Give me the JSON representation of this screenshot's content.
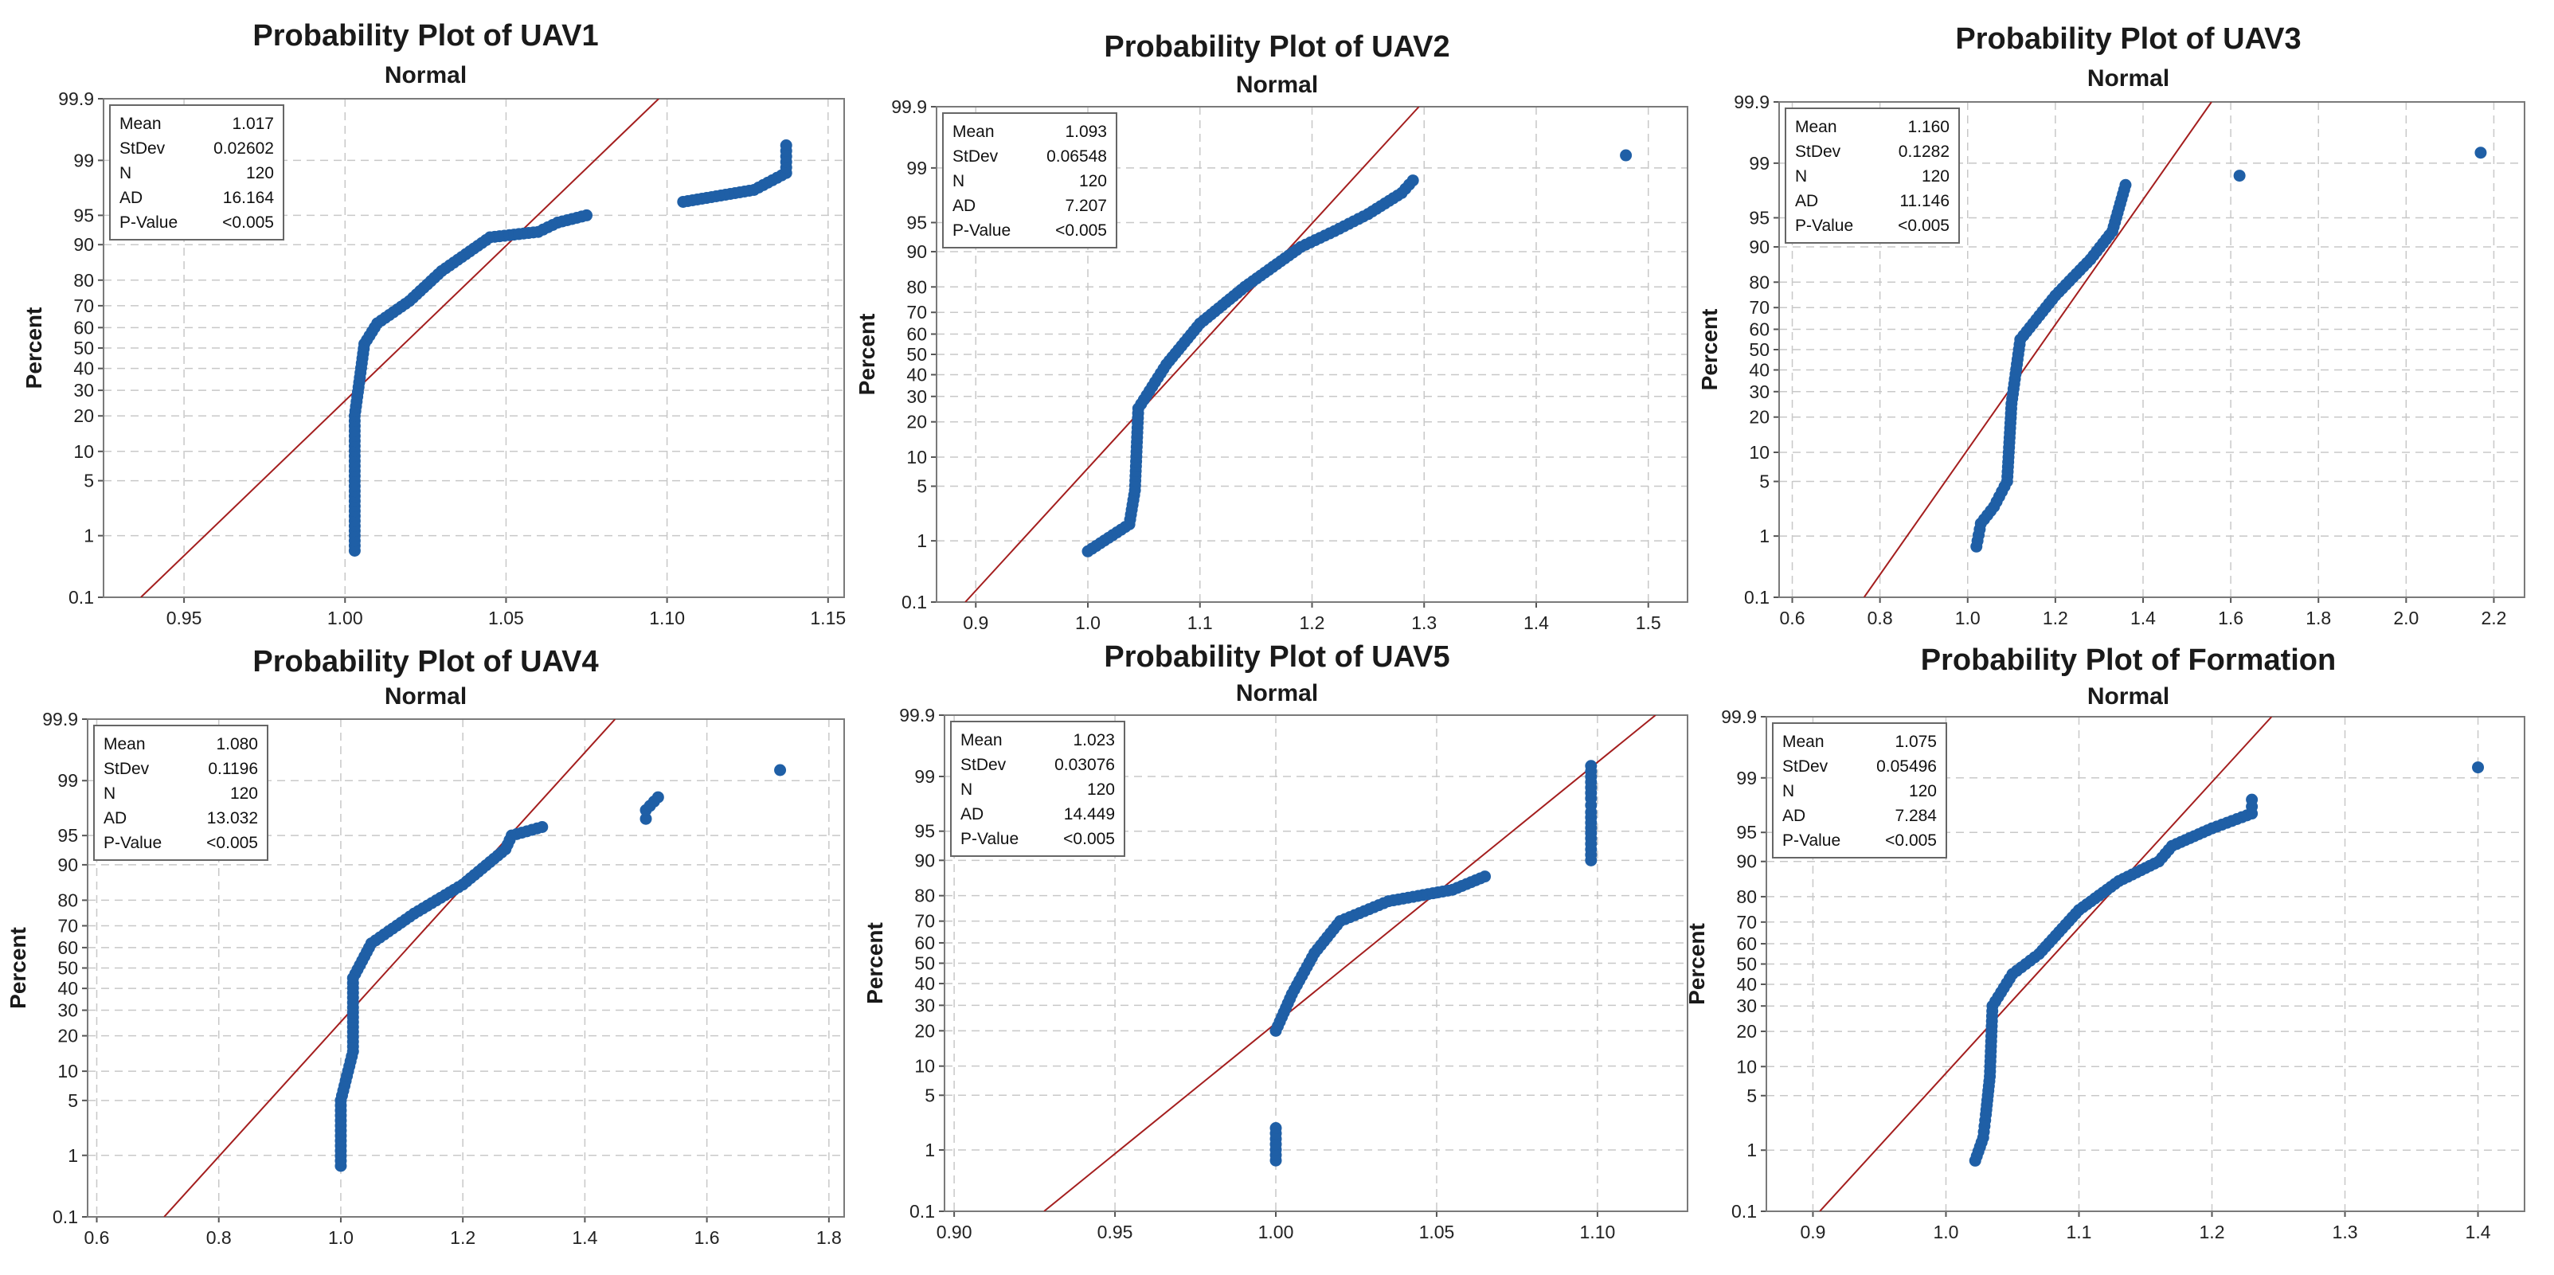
{
  "chart_data": [
    {
      "type": "scatter",
      "title": "Probability Plot of UAV1",
      "subtitle": "Normal",
      "xlabel": "",
      "ylabel": "Percent",
      "xlim": [
        0.925,
        1.155
      ],
      "x_ticks": [
        "0.95",
        "1.00",
        "1.05",
        "1.10",
        "1.15"
      ],
      "y_ticks": [
        "0.1",
        "1",
        "5",
        "10",
        "20",
        "30",
        "40",
        "50",
        "60",
        "70",
        "80",
        "90",
        "95",
        "99",
        "99.9"
      ],
      "fit_line": {
        "mean": 1.017,
        "stdev": 0.02602
      },
      "stats": [
        {
          "label": "Mean",
          "value": "1.017"
        },
        {
          "label": "StDev",
          "value": "0.02602"
        },
        {
          "label": "N",
          "value": "120"
        },
        {
          "label": "AD",
          "value": "16.164"
        },
        {
          "label": "P-Value",
          "value": "<0.005"
        }
      ],
      "points": [
        [
          1.003,
          0.6
        ],
        [
          1.003,
          2.5
        ],
        [
          1.003,
          20
        ],
        [
          1.006,
          52
        ],
        [
          1.01,
          62
        ],
        [
          1.02,
          72
        ],
        [
          1.03,
          83
        ],
        [
          1.045,
          91.5
        ],
        [
          1.06,
          92.5
        ],
        [
          1.066,
          94
        ],
        [
          1.075,
          95
        ],
        [
          1.105,
          96.5
        ],
        [
          1.127,
          97.5
        ],
        [
          1.137,
          98.5
        ],
        [
          1.137,
          99.4
        ]
      ]
    },
    {
      "type": "scatter",
      "title": "Probability Plot of UAV2",
      "subtitle": "Normal",
      "xlabel": "",
      "ylabel": "Percent",
      "xlim": [
        0.865,
        1.535
      ],
      "x_ticks": [
        "0.9",
        "1.0",
        "1.1",
        "1.2",
        "1.3",
        "1.4",
        "1.5"
      ],
      "y_ticks": [
        "0.1",
        "1",
        "5",
        "10",
        "20",
        "30",
        "40",
        "50",
        "60",
        "70",
        "80",
        "90",
        "95",
        "99",
        "99.9"
      ],
      "fit_line": {
        "mean": 1.093,
        "stdev": 0.06548
      },
      "stats": [
        {
          "label": "Mean",
          "value": "1.093"
        },
        {
          "label": "StDev",
          "value": "0.06548"
        },
        {
          "label": "N",
          "value": "120"
        },
        {
          "label": "AD",
          "value": "7.207"
        },
        {
          "label": "P-Value",
          "value": "<0.005"
        }
      ],
      "points": [
        [
          1.0,
          0.7
        ],
        [
          1.037,
          1.7
        ],
        [
          1.042,
          4.5
        ],
        [
          1.045,
          25
        ],
        [
          1.07,
          45
        ],
        [
          1.1,
          65
        ],
        [
          1.14,
          80
        ],
        [
          1.19,
          91
        ],
        [
          1.22,
          93.8
        ],
        [
          1.25,
          96
        ],
        [
          1.28,
          97.8
        ],
        [
          1.29,
          98.5
        ],
        [
          1.48,
          99.35
        ]
      ]
    },
    {
      "type": "scatter",
      "title": "Probability Plot of UAV3",
      "subtitle": "Normal",
      "xlabel": "",
      "ylabel": "Percent",
      "xlim": [
        0.57,
        2.27
      ],
      "x_ticks": [
        "0.6",
        "0.8",
        "1.0",
        "1.2",
        "1.4",
        "1.6",
        "1.8",
        "2.0",
        "2.2"
      ],
      "y_ticks": [
        "0.1",
        "1",
        "5",
        "10",
        "20",
        "30",
        "40",
        "50",
        "60",
        "70",
        "80",
        "90",
        "95",
        "99",
        "99.9"
      ],
      "fit_line": {
        "mean": 1.16,
        "stdev": 0.1282
      },
      "stats": [
        {
          "label": "Mean",
          "value": "1.160"
        },
        {
          "label": "StDev",
          "value": "0.1282"
        },
        {
          "label": "N",
          "value": "120"
        },
        {
          "label": "AD",
          "value": "11.146"
        },
        {
          "label": "P-Value",
          "value": "<0.005"
        }
      ],
      "points": [
        [
          1.02,
          0.7
        ],
        [
          1.03,
          1.5
        ],
        [
          1.06,
          2.5
        ],
        [
          1.09,
          5
        ],
        [
          1.1,
          25
        ],
        [
          1.12,
          55
        ],
        [
          1.2,
          75
        ],
        [
          1.28,
          87
        ],
        [
          1.33,
          93
        ],
        [
          1.36,
          98
        ],
        [
          1.62,
          98.5
        ],
        [
          2.17,
          99.3
        ]
      ]
    },
    {
      "type": "scatter",
      "title": "Probability Plot of UAV4",
      "subtitle": "Normal",
      "xlabel": "",
      "ylabel": "Percent",
      "xlim": [
        0.585,
        1.825
      ],
      "x_ticks": [
        "0.6",
        "0.8",
        "1.0",
        "1.2",
        "1.4",
        "1.6",
        "1.8"
      ],
      "y_ticks": [
        "0.1",
        "1",
        "5",
        "10",
        "20",
        "30",
        "40",
        "50",
        "60",
        "70",
        "80",
        "90",
        "95",
        "99",
        "99.9"
      ],
      "fit_line": {
        "mean": 1.08,
        "stdev": 0.1196
      },
      "stats": [
        {
          "label": "Mean",
          "value": "1.080"
        },
        {
          "label": "StDev",
          "value": "0.1196"
        },
        {
          "label": "N",
          "value": "120"
        },
        {
          "label": "AD",
          "value": "13.032"
        },
        {
          "label": "P-Value",
          "value": "<0.005"
        }
      ],
      "points": [
        [
          1.0,
          0.7
        ],
        [
          1.0,
          5
        ],
        [
          1.02,
          15
        ],
        [
          1.02,
          45
        ],
        [
          1.05,
          62
        ],
        [
          1.12,
          75
        ],
        [
          1.2,
          85
        ],
        [
          1.27,
          93
        ],
        [
          1.28,
          95
        ],
        [
          1.33,
          96
        ],
        [
          1.5,
          96.8
        ],
        [
          1.5,
          97.5
        ],
        [
          1.52,
          98.3
        ],
        [
          1.72,
          99.3
        ]
      ]
    },
    {
      "type": "scatter",
      "title": "Probability Plot of UAV5",
      "subtitle": "Normal",
      "xlabel": "",
      "ylabel": "Percent",
      "xlim": [
        0.897,
        1.128
      ],
      "x_ticks": [
        "0.90",
        "0.95",
        "1.00",
        "1.05",
        "1.10"
      ],
      "y_ticks": [
        "0.1",
        "1",
        "5",
        "10",
        "20",
        "30",
        "40",
        "50",
        "60",
        "70",
        "80",
        "90",
        "95",
        "99",
        "99.9"
      ],
      "fit_line": {
        "mean": 1.023,
        "stdev": 0.03076
      },
      "stats": [
        {
          "label": "Mean",
          "value": "1.023"
        },
        {
          "label": "StDev",
          "value": "0.03076"
        },
        {
          "label": "N",
          "value": "120"
        },
        {
          "label": "AD",
          "value": "14.449"
        },
        {
          "label": "P-Value",
          "value": "<0.005"
        }
      ],
      "points": [
        [
          1.0,
          0.7
        ],
        [
          1.0,
          2
        ],
        [
          1.0,
          20
        ],
        [
          1.005,
          35
        ],
        [
          1.012,
          55
        ],
        [
          1.02,
          70
        ],
        [
          1.035,
          78
        ],
        [
          1.055,
          82
        ],
        [
          1.065,
          86
        ],
        [
          1.098,
          90
        ],
        [
          1.098,
          94
        ],
        [
          1.098,
          97
        ],
        [
          1.098,
          98
        ],
        [
          1.098,
          99.3
        ]
      ]
    },
    {
      "type": "scatter",
      "title": "Probability Plot of Formation",
      "subtitle": "Normal",
      "xlabel": "",
      "ylabel": "Percent",
      "xlim": [
        0.865,
        1.435
      ],
      "x_ticks": [
        "0.9",
        "1.0",
        "1.1",
        "1.2",
        "1.3",
        "1.4"
      ],
      "y_ticks": [
        "0.1",
        "1",
        "5",
        "10",
        "20",
        "30",
        "40",
        "50",
        "60",
        "70",
        "80",
        "90",
        "95",
        "99",
        "99.9"
      ],
      "fit_line": {
        "mean": 1.075,
        "stdev": 0.05496
      },
      "stats": [
        {
          "label": "Mean",
          "value": "1.075"
        },
        {
          "label": "StDev",
          "value": "0.05496"
        },
        {
          "label": "N",
          "value": "120"
        },
        {
          "label": "AD",
          "value": "7.284"
        },
        {
          "label": "P-Value",
          "value": "<0.005"
        }
      ],
      "points": [
        [
          1.022,
          0.7
        ],
        [
          1.028,
          1.5
        ],
        [
          1.03,
          3
        ],
        [
          1.033,
          8
        ],
        [
          1.035,
          30
        ],
        [
          1.05,
          45
        ],
        [
          1.07,
          55
        ],
        [
          1.1,
          75
        ],
        [
          1.13,
          85
        ],
        [
          1.16,
          90
        ],
        [
          1.17,
          93
        ],
        [
          1.2,
          95.5
        ],
        [
          1.23,
          97
        ],
        [
          1.23,
          98
        ],
        [
          1.4,
          99.3
        ]
      ]
    }
  ]
}
